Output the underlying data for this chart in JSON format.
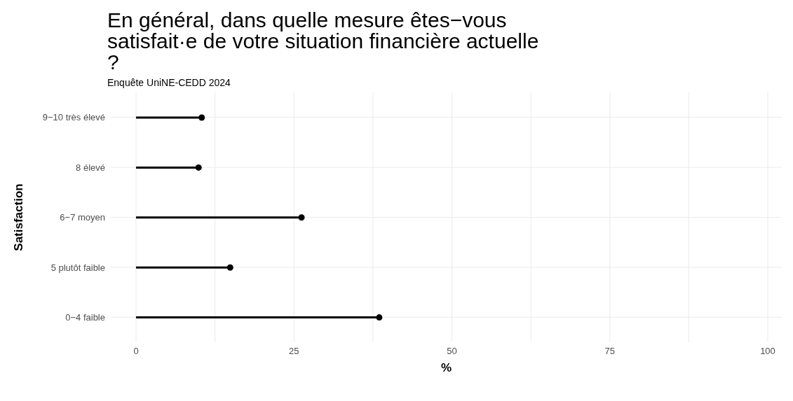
{
  "chart_data": {
    "type": "lollipop",
    "title": "En général, dans quelle mesure êtes−vous satisfait·e de votre situation financière actuelle ?",
    "subtitle": "Enquête UniNE-CEDD 2024",
    "xlabel": "%",
    "ylabel": "Satisfaction",
    "orientation": "horizontal",
    "categories": [
      "9−10 très élevé",
      "8 élevé",
      "6−7 moyen",
      "5 plutôt faible",
      "0−4 faible"
    ],
    "values": [
      10.4,
      9.9,
      26.2,
      14.9,
      38.5
    ],
    "color": "#000000",
    "marker": "circle",
    "xlim": [
      0,
      100
    ],
    "xticks": [
      0,
      {
        "value": 12.5,
        "label": null
      },
      25,
      {
        "value": 37.5,
        "label": null
      },
      50,
      {
        "value": 62.5,
        "label": null
      },
      75,
      {
        "value": 87.5,
        "label": null
      },
      100
    ],
    "grid": true
  }
}
